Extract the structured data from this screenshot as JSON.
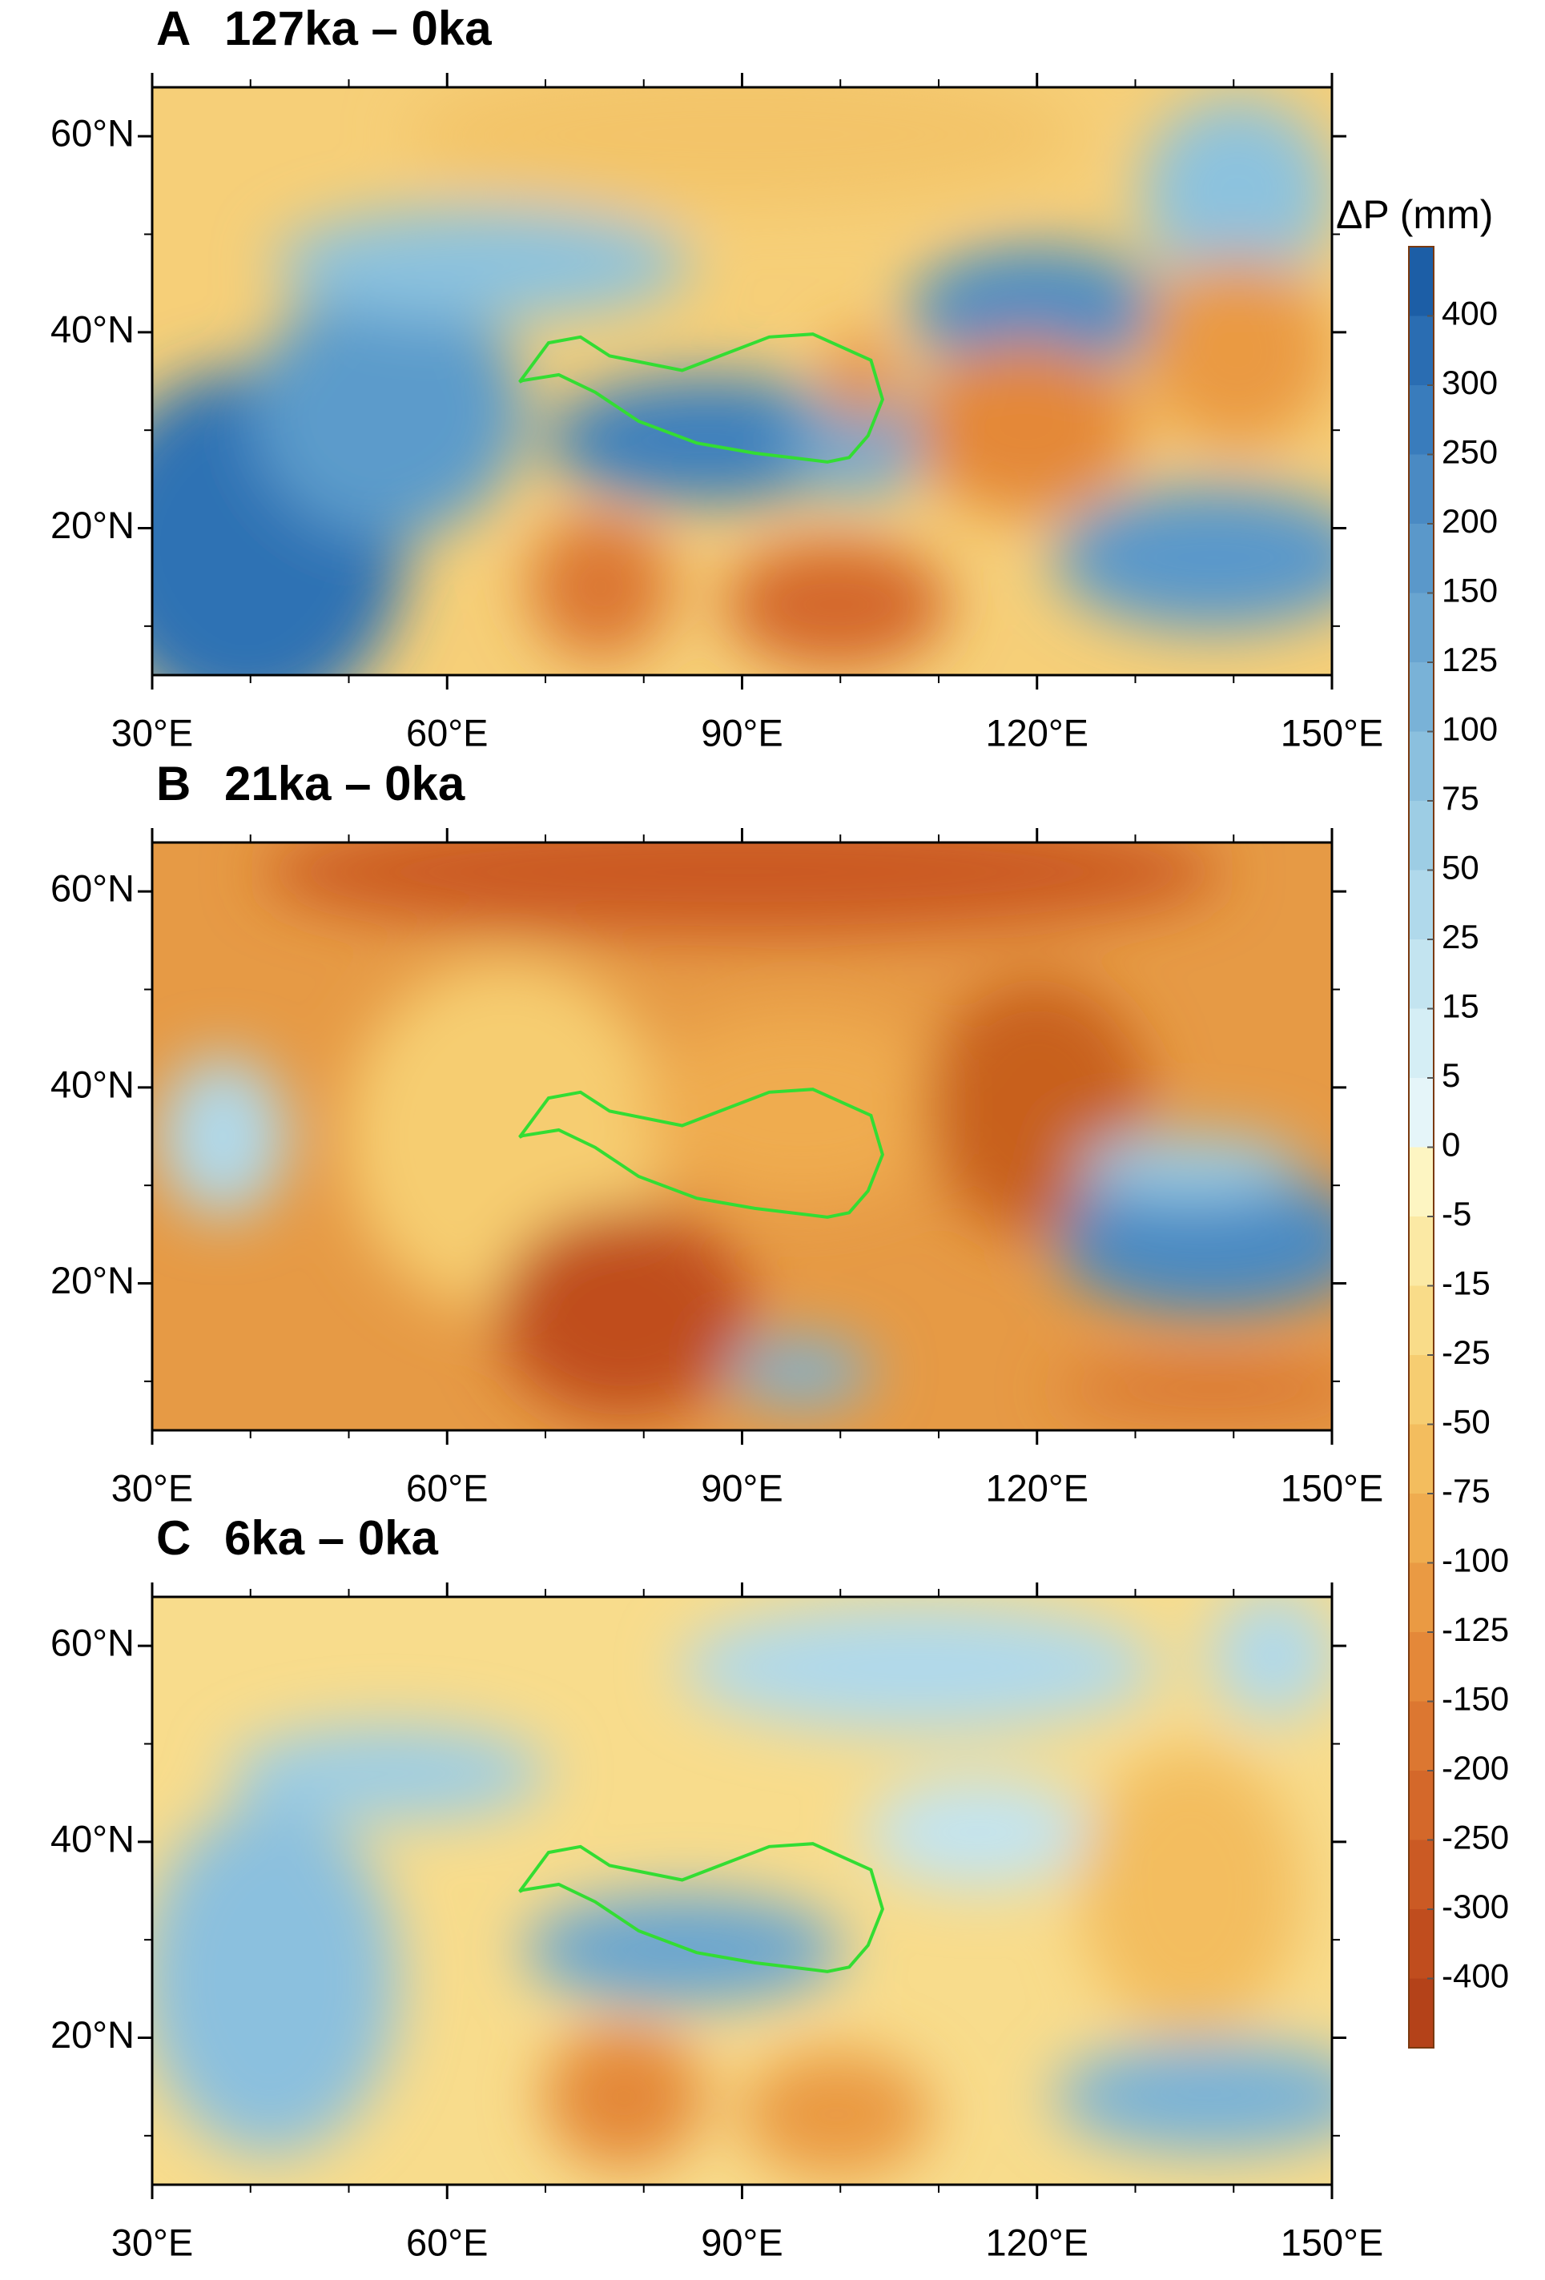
{
  "panels": [
    {
      "label": "A",
      "title": "127ka – 0ka"
    },
    {
      "label": "B",
      "title": "21ka – 0ka"
    },
    {
      "label": "C",
      "title": "6ka – 0ka"
    }
  ],
  "lon_lim": [
    30,
    150
  ],
  "lat_lim": [
    5,
    65
  ],
  "lon_ticks": [
    {
      "value": 30,
      "label": "30°E"
    },
    {
      "value": 60,
      "label": "60°E"
    },
    {
      "value": 90,
      "label": "90°E"
    },
    {
      "value": 120,
      "label": "120°E"
    },
    {
      "value": 150,
      "label": "150°E"
    }
  ],
  "lon_minor_ticks": [
    40,
    50,
    70,
    80,
    100,
    110,
    130,
    140
  ],
  "lat_ticks": [
    {
      "value": 20,
      "label": "20°N"
    },
    {
      "value": 40,
      "label": "40°N"
    },
    {
      "value": 60,
      "label": "60°N"
    }
  ],
  "lat_minor_ticks": [
    10,
    30,
    50
  ],
  "colorbar": {
    "title": "ΔP (mm)",
    "levels": [
      400,
      300,
      250,
      200,
      150,
      125,
      100,
      75,
      50,
      25,
      15,
      5,
      0,
      -5,
      -15,
      -25,
      -50,
      -75,
      -100,
      -125,
      -150,
      -200,
      -250,
      -300,
      -400
    ],
    "colors": [
      "#1c5ea6",
      "#2a6db2",
      "#397cbc",
      "#4a8ac3",
      "#5a98ca",
      "#69a5d0",
      "#79b2d7",
      "#8bc0de",
      "#9dcde4",
      "#b0d9eb",
      "#c3e4f0",
      "#d5eef5",
      "#e5f5f9",
      "#fdf5c2",
      "#fbe9a4",
      "#f9dc89",
      "#f6cd71",
      "#f3bd5e",
      "#efac4f",
      "#ea9a43",
      "#e48839",
      "#dc7731",
      "#d4682a",
      "#cb5a24",
      "#c04d1e",
      "#b44219"
    ]
  }
}
